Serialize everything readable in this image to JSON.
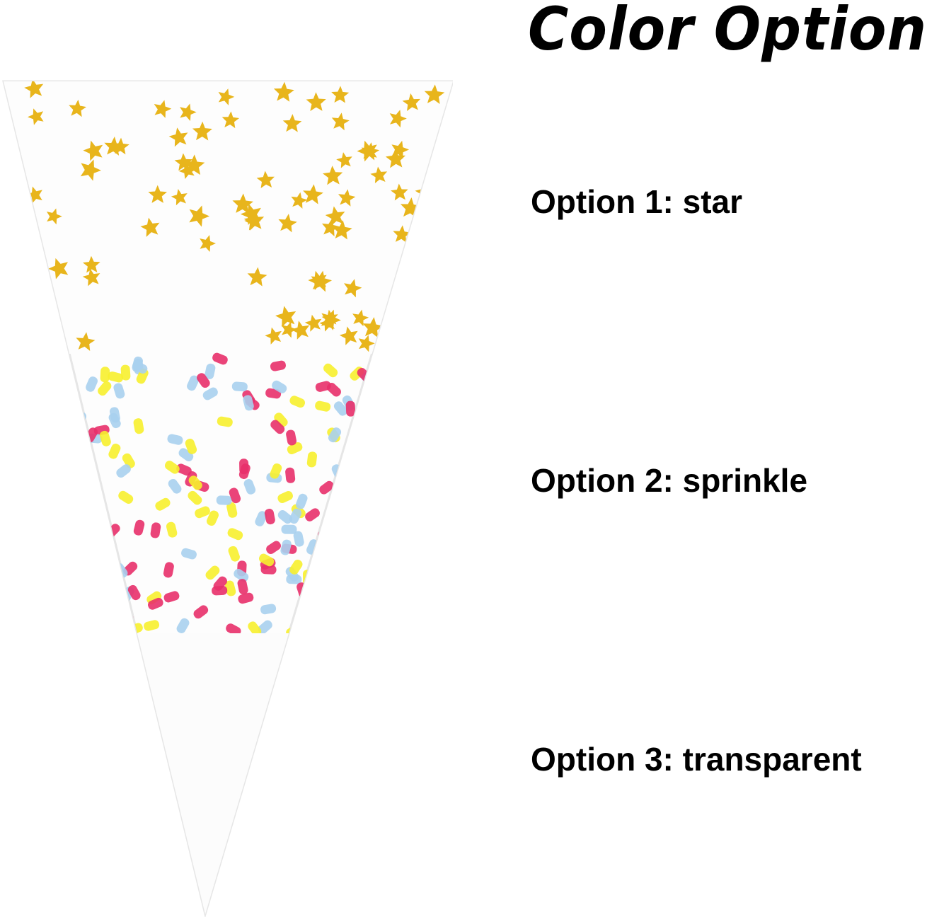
{
  "title": "Color Options",
  "options": [
    {
      "label": "Option 1: star",
      "pattern": "star"
    },
    {
      "label": "Option 2: sprinkle",
      "pattern": "sprinkle"
    },
    {
      "label": "Option 3: transparent",
      "pattern": "transparent"
    }
  ],
  "colors": {
    "star": "#e8b51c",
    "sprinkle_pink": "#e8306a",
    "sprinkle_yellow": "#f7ef2e",
    "sprinkle_blue": "#a9d0ee",
    "cone_edge": "#e6e6e6"
  }
}
